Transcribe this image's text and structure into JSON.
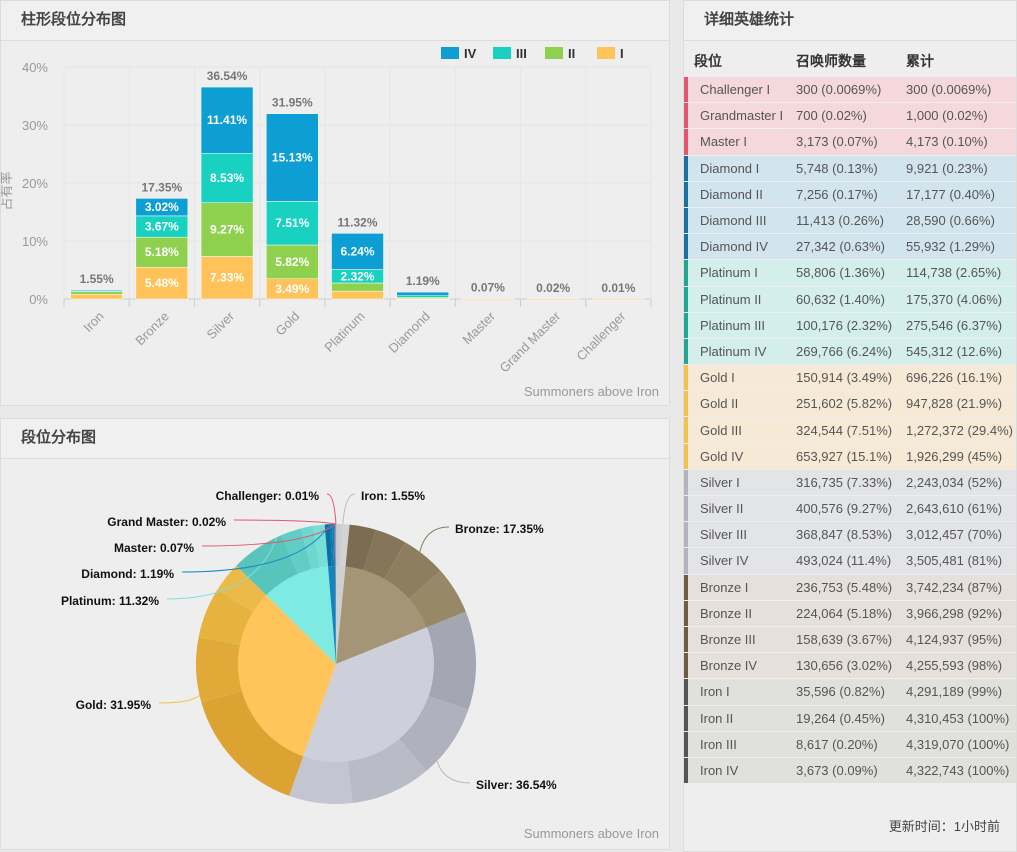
{
  "bar_panel": {
    "title": "柱形段位分布图",
    "credit": "Summoners above Iron"
  },
  "pie_panel": {
    "title": "段位分布图",
    "credit": "Summoners above Iron"
  },
  "table_panel": {
    "title": "详细英雄统计",
    "headers": [
      "段位",
      "召唤师数量",
      "累计"
    ],
    "rows": [
      {
        "rank": "Challenger I",
        "count": "300 (0.0069%)",
        "cum": "300 (0.0069%)",
        "group": "apex"
      },
      {
        "rank": "Grandmaster I",
        "count": "700 (0.02%)",
        "cum": "1,000 (0.02%)",
        "group": "apex"
      },
      {
        "rank": "Master I",
        "count": "3,173 (0.07%)",
        "cum": "4,173 (0.10%)",
        "group": "apex"
      },
      {
        "rank": "Diamond I",
        "count": "5,748 (0.13%)",
        "cum": "9,921 (0.23%)",
        "group": "diamond"
      },
      {
        "rank": "Diamond II",
        "count": "7,256 (0.17%)",
        "cum": "17,177 (0.40%)",
        "group": "diamond"
      },
      {
        "rank": "Diamond III",
        "count": "11,413 (0.26%)",
        "cum": "28,590 (0.66%)",
        "group": "diamond"
      },
      {
        "rank": "Diamond IV",
        "count": "27,342 (0.63%)",
        "cum": "55,932 (1.29%)",
        "group": "diamond"
      },
      {
        "rank": "Platinum I",
        "count": "58,806 (1.36%)",
        "cum": "114,738 (2.65%)",
        "group": "platinum"
      },
      {
        "rank": "Platinum II",
        "count": "60,632 (1.40%)",
        "cum": "175,370 (4.06%)",
        "group": "platinum"
      },
      {
        "rank": "Platinum III",
        "count": "100,176 (2.32%)",
        "cum": "275,546 (6.37%)",
        "group": "platinum"
      },
      {
        "rank": "Platinum IV",
        "count": "269,766 (6.24%)",
        "cum": "545,312 (12.6%)",
        "group": "platinum"
      },
      {
        "rank": "Gold I",
        "count": "150,914 (3.49%)",
        "cum": "696,226 (16.1%)",
        "group": "gold"
      },
      {
        "rank": "Gold II",
        "count": "251,602 (5.82%)",
        "cum": "947,828 (21.9%)",
        "group": "gold"
      },
      {
        "rank": "Gold III",
        "count": "324,544 (7.51%)",
        "cum": "1,272,372 (29.4%)",
        "group": "gold"
      },
      {
        "rank": "Gold IV",
        "count": "653,927 (15.1%)",
        "cum": "1,926,299 (45%)",
        "group": "gold"
      },
      {
        "rank": "Silver I",
        "count": "316,735 (7.33%)",
        "cum": "2,243,034 (52%)",
        "group": "silver"
      },
      {
        "rank": "Silver II",
        "count": "400,576 (9.27%)",
        "cum": "2,643,610 (61%)",
        "group": "silver"
      },
      {
        "rank": "Silver III",
        "count": "368,847 (8.53%)",
        "cum": "3,012,457 (70%)",
        "group": "silver"
      },
      {
        "rank": "Silver IV",
        "count": "493,024 (11.4%)",
        "cum": "3,505,481 (81%)",
        "group": "silver"
      },
      {
        "rank": "Bronze I",
        "count": "236,753 (5.48%)",
        "cum": "3,742,234 (87%)",
        "group": "bronze"
      },
      {
        "rank": "Bronze II",
        "count": "224,064 (5.18%)",
        "cum": "3,966,298 (92%)",
        "group": "bronze"
      },
      {
        "rank": "Bronze III",
        "count": "158,639 (3.67%)",
        "cum": "4,124,937 (95%)",
        "group": "bronze"
      },
      {
        "rank": "Bronze IV",
        "count": "130,656 (3.02%)",
        "cum": "4,255,593 (98%)",
        "group": "bronze"
      },
      {
        "rank": "Iron I",
        "count": "35,596 (0.82%)",
        "cum": "4,291,189 (99%)",
        "group": "iron"
      },
      {
        "rank": "Iron II",
        "count": "19,264 (0.45%)",
        "cum": "4,310,453 (100%)",
        "group": "iron"
      },
      {
        "rank": "Iron III",
        "count": "8,617 (0.20%)",
        "cum": "4,319,070 (100%)",
        "group": "iron"
      },
      {
        "rank": "Iron IV",
        "count": "3,673 (0.09%)",
        "cum": "4,322,743 (100%)",
        "group": "iron"
      }
    ],
    "group_colors": {
      "apex": {
        "bar": "#e2566f",
        "bg": "#f5d8db"
      },
      "diamond": {
        "bar": "#1a6fa3",
        "bg": "#d2e5ee"
      },
      "platinum": {
        "bar": "#22a593",
        "bg": "#d4eeeb"
      },
      "gold": {
        "bar": "#f2c14e",
        "bg": "#f6ead6"
      },
      "silver": {
        "bar": "#b1b4c0",
        "bg": "#e3e4e7"
      },
      "bronze": {
        "bar": "#6c5d43",
        "bg": "#e5e1da"
      },
      "iron": {
        "bar": "#555555",
        "bg": "#e0e0dc"
      }
    },
    "footer": "更新时间：1小时前"
  },
  "chart_data": [
    {
      "type": "bar",
      "stacked": true,
      "ylabel": "占有率",
      "ylim": [
        0,
        40
      ],
      "yticks": [
        "0%",
        "10%",
        "20%",
        "30%",
        "40%"
      ],
      "categories": [
        "Iron",
        "Bronze",
        "Silver",
        "Gold",
        "Platinum",
        "Diamond",
        "Master",
        "Grand Master",
        "Challenger"
      ],
      "totals": [
        "1.55%",
        "17.35%",
        "36.54%",
        "31.95%",
        "11.32%",
        "1.19%",
        "0.07%",
        "0.02%",
        "0.01%"
      ],
      "series": [
        {
          "name": "I",
          "color": "#ffc35a",
          "values": [
            0.82,
            5.48,
            7.33,
            3.49,
            1.36,
            0.13,
            0.07,
            0.02,
            0.01
          ]
        },
        {
          "name": "II",
          "color": "#8fd14f",
          "values": [
            0.45,
            5.18,
            9.27,
            5.82,
            1.4,
            0.17,
            0,
            0,
            0
          ]
        },
        {
          "name": "III",
          "color": "#19d1c0",
          "values": [
            0.2,
            3.67,
            8.53,
            7.51,
            2.32,
            0.26,
            0,
            0,
            0
          ]
        },
        {
          "name": "IV",
          "color": "#0d9fd3",
          "values": [
            0.09,
            3.02,
            11.41,
            15.13,
            6.24,
            0.63,
            0,
            0,
            0
          ]
        }
      ],
      "legend_order": [
        "IV",
        "III",
        "II",
        "I"
      ],
      "legend": "bottom",
      "grid": true
    },
    {
      "type": "pie",
      "inner": [
        {
          "name": "Iron",
          "value": 1.55,
          "label": "Iron: 1.55%",
          "color": "#cfcfcf",
          "outer": [
            0.09,
            0.2,
            0.45,
            0.82
          ],
          "outer_colors": [
            "#c2c2c2",
            "#c8c8c8",
            "#cdcdcd",
            "#d3d3d3"
          ]
        },
        {
          "name": "Bronze",
          "value": 17.35,
          "label": "Bronze: 17.35%",
          "color": "#a59577",
          "outer": [
            3.02,
            3.67,
            5.18,
            5.48
          ],
          "outer_colors": [
            "#7b6d51",
            "#857659",
            "#8e7e60",
            "#978868"
          ]
        },
        {
          "name": "Silver",
          "value": 36.54,
          "label": "Silver: 36.54%",
          "color": "#cdd0da",
          "outer": [
            11.41,
            8.53,
            9.27,
            7.33
          ],
          "outer_colors": [
            "#a4a7b1",
            "#afb2bd",
            "#b9bcc7",
            "#c3c6d0"
          ]
        },
        {
          "name": "Gold",
          "value": 31.95,
          "label": "Gold: 31.95%",
          "color": "#ffc55a",
          "outer": [
            15.13,
            7.51,
            5.82,
            3.49
          ],
          "outer_colors": [
            "#dca232",
            "#e1aa38",
            "#e6b240",
            "#ebba48"
          ]
        },
        {
          "name": "Platinum",
          "value": 11.32,
          "label": "Platinum: 11.32%",
          "color": "#7eeae2",
          "outer": [
            6.24,
            2.32,
            1.4,
            1.36
          ],
          "outer_colors": [
            "#58c4bc",
            "#62cdc5",
            "#6dd6ce",
            "#77dfd7"
          ]
        },
        {
          "name": "Diamond",
          "value": 1.19,
          "label": "Diamond: 1.19%",
          "color": "#0f86c2",
          "outer": [
            0.63,
            0.26,
            0.17,
            0.13
          ],
          "outer_colors": [
            "#0a6fa4",
            "#0c79b0",
            "#0e83bb",
            "#108dc6"
          ]
        },
        {
          "name": "Master",
          "value": 0.07,
          "label": "Master: 0.07%",
          "color": "#e25c78",
          "outer": [
            0.07
          ],
          "outer_colors": [
            "#d9506b"
          ]
        },
        {
          "name": "Grand Master",
          "value": 0.02,
          "label": "Grand Master: 0.02%",
          "color": "#e56a80",
          "outer": [
            0.02
          ],
          "outer_colors": [
            "#dc5e75"
          ]
        },
        {
          "name": "Challenger",
          "value": 0.01,
          "label": "Challenger: 0.01%",
          "color": "#ea7a8d",
          "outer": [
            0.01
          ],
          "outer_colors": [
            "#e06e82"
          ]
        }
      ],
      "leader_colors": [
        "#bbbbbb",
        "#8b7b5d",
        "#b5b8c2",
        "#f2c14e",
        "#7fe0da",
        "#1589bf",
        "#e2566f",
        "#e2566f",
        "#e2566f"
      ]
    }
  ]
}
